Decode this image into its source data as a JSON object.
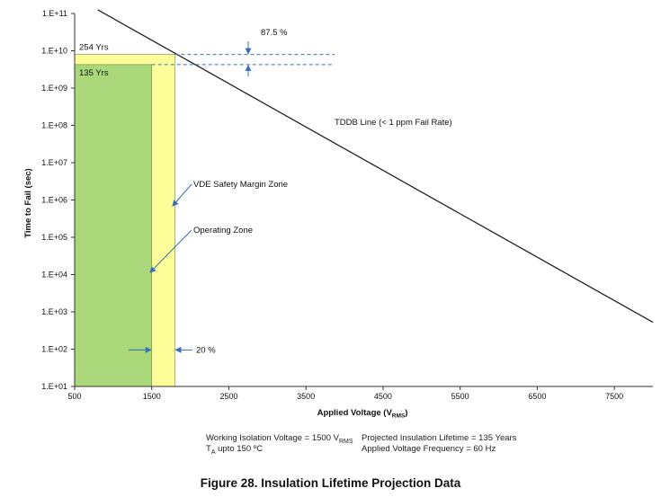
{
  "chart_data": {
    "type": "line",
    "title": "",
    "xlabel": "Applied Voltage (V",
    "xlabel_sub": "RMS",
    "xlabel_close": ")",
    "ylabel": "Time to Fail (sec)",
    "xlim": [
      500,
      8000
    ],
    "ylim_log10": [
      1,
      11
    ],
    "x_ticks": [
      500,
      1500,
      2500,
      3500,
      4500,
      5500,
      6500,
      7500
    ],
    "y_ticks": [
      {
        "exp": 11,
        "label": "1.E+11"
      },
      {
        "exp": 10,
        "label": "1.E+10"
      },
      {
        "exp": 9,
        "label": "1.E+09"
      },
      {
        "exp": 8,
        "label": "1.E+08"
      },
      {
        "exp": 7,
        "label": "1.E+07"
      },
      {
        "exp": 6,
        "label": "1.E+06"
      },
      {
        "exp": 5,
        "label": "1.E+05"
      },
      {
        "exp": 4,
        "label": "1.E+04"
      },
      {
        "exp": 3,
        "label": "1.E+03"
      },
      {
        "exp": 2,
        "label": "1.E+02"
      },
      {
        "exp": 1,
        "label": "1.E+01"
      }
    ],
    "series": [
      {
        "name": "TDDB Line (< 1 ppm Fail Rate)",
        "x": [
          800,
          8000
        ],
        "log10_y": [
          11.1,
          2.72
        ]
      }
    ],
    "regions": [
      {
        "name": "VDE Safety Margin Zone",
        "x0": 500,
        "x1": 1800,
        "log10_y_top": 9.9,
        "color": "#ffff99"
      },
      {
        "name": "Operating  Zone",
        "x0": 500,
        "x1": 1500,
        "log10_y_top": 9.63,
        "color": "#a9d77a"
      }
    ],
    "annotations": {
      "yrs_254": "254 Yrs",
      "yrs_135": "135 Yrs",
      "pct_875": "87.5 %",
      "tddb": "TDDB Line (< 1 ppm Fail Rate)",
      "vde": "VDE Safety Margin Zone",
      "operating": "Operating  Zone",
      "pct_20": "20 %"
    }
  },
  "notes": {
    "working_voltage": "Working Isolation Voltage = 1500 V",
    "working_voltage_sub": "RMS",
    "ta_prefix": "T",
    "ta_sub": "A",
    "ta_rest": " upto 150 ºC",
    "lifetime": "Projected Insulation Lifetime = 135 Years",
    "frequency": "Applied Voltage Frequency = 60 Hz"
  },
  "caption": "Figure 28.  Insulation Lifetime Projection Data",
  "colors": {
    "safety_zone": "#ffff99",
    "operating_zone": "#a9d77a",
    "arrow_blue": "#3a6fb5",
    "line": "#222222"
  }
}
